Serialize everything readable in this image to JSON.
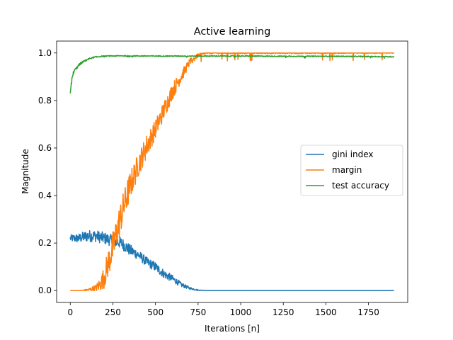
{
  "chart_data": {
    "type": "line",
    "title": "Active learning",
    "xlabel": "Iterations [n]",
    "ylabel": "Magnitude",
    "xlim": [
      -80,
      1980
    ],
    "ylim": [
      -0.05,
      1.05
    ],
    "xticks": [
      0,
      250,
      500,
      750,
      1000,
      1250,
      1500,
      1750
    ],
    "yticks": [
      0.0,
      0.2,
      0.4,
      0.6,
      0.8,
      1.0
    ],
    "xtick_labels": [
      "0",
      "250",
      "500",
      "750",
      "1000",
      "1250",
      "1500",
      "1750"
    ],
    "ytick_labels": [
      "0.0",
      "0.2",
      "0.4",
      "0.6",
      "0.8",
      "1.0"
    ],
    "grid": false,
    "legend_position": "center-right",
    "series": [
      {
        "name": "gini index",
        "color": "#1f77b4",
        "x": [
          0,
          50,
          100,
          150,
          200,
          250,
          300,
          350,
          400,
          450,
          500,
          550,
          600,
          650,
          700,
          750,
          800,
          900,
          1000,
          1250,
          1500,
          1750,
          1900
        ],
        "y": [
          0.22,
          0.22,
          0.23,
          0.23,
          0.22,
          0.21,
          0.2,
          0.17,
          0.15,
          0.12,
          0.1,
          0.07,
          0.05,
          0.025,
          0.01,
          0.002,
          0.0,
          0.0,
          0.0,
          0.0,
          0.0,
          0.0,
          0.0
        ],
        "noise": [
          0.015,
          0.02,
          0.025,
          0.025,
          0.025,
          0.025,
          0.025,
          0.025,
          0.02,
          0.02,
          0.02,
          0.018,
          0.015,
          0.01,
          0.005,
          0.002,
          0.0,
          0.0,
          0.0,
          0.0,
          0.0,
          0.0,
          0.0
        ]
      },
      {
        "name": "margin",
        "color": "#ff7f0e",
        "x": [
          0,
          50,
          100,
          150,
          180,
          200,
          250,
          300,
          350,
          400,
          450,
          500,
          550,
          600,
          650,
          700,
          750,
          800,
          900,
          1000,
          1250,
          1500,
          1750,
          1900
        ],
        "y": [
          0.0,
          0.0,
          0.002,
          0.01,
          0.03,
          0.06,
          0.18,
          0.32,
          0.44,
          0.53,
          0.61,
          0.68,
          0.76,
          0.84,
          0.9,
          0.96,
          0.99,
          1.0,
          1.0,
          1.0,
          1.0,
          1.0,
          1.0,
          1.0
        ],
        "noise": [
          0.0,
          0.0,
          0.005,
          0.015,
          0.03,
          0.05,
          0.07,
          0.07,
          0.06,
          0.05,
          0.05,
          0.04,
          0.04,
          0.035,
          0.025,
          0.015,
          0.008,
          0.004,
          0.004,
          0.004,
          0.003,
          0.003,
          0.002,
          0.002
        ]
      },
      {
        "name": "test accuracy",
        "color": "#2ca02c",
        "x": [
          0,
          5,
          10,
          20,
          40,
          60,
          80,
          100,
          120,
          150,
          200,
          300,
          500,
          750,
          1000,
          1250,
          1500,
          1750,
          1900
        ],
        "y": [
          0.83,
          0.86,
          0.89,
          0.92,
          0.94,
          0.955,
          0.965,
          0.972,
          0.978,
          0.983,
          0.987,
          0.988,
          0.987,
          0.987,
          0.987,
          0.986,
          0.986,
          0.985,
          0.984
        ],
        "noise": [
          0.0,
          0.01,
          0.01,
          0.008,
          0.006,
          0.005,
          0.004,
          0.004,
          0.003,
          0.003,
          0.002,
          0.002,
          0.002,
          0.002,
          0.002,
          0.002,
          0.002,
          0.002,
          0.002
        ]
      }
    ]
  }
}
